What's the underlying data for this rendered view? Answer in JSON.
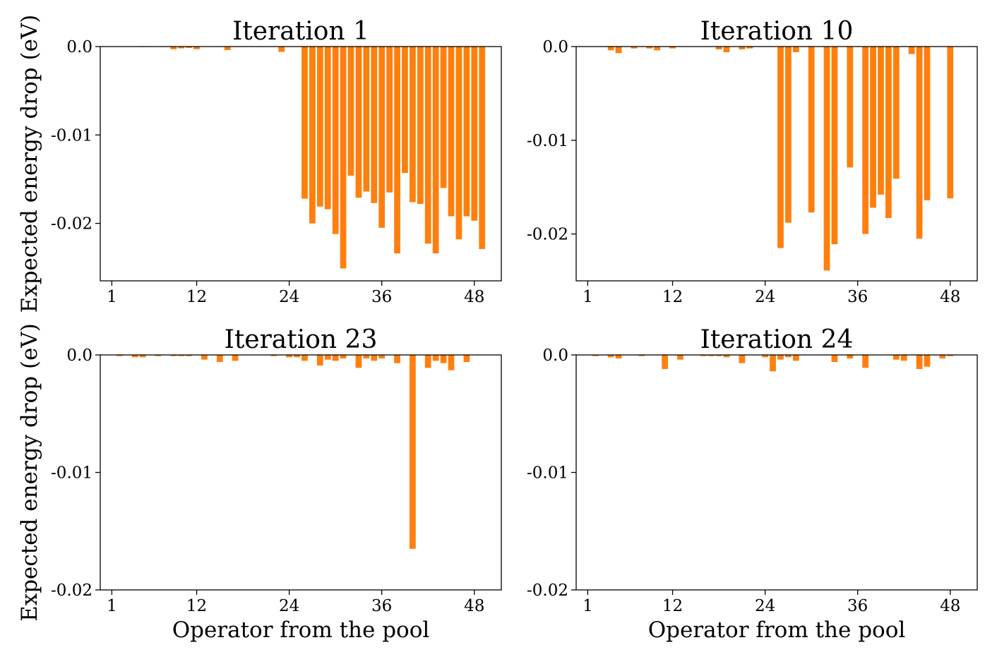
{
  "ylabel": "Expected energy drop (eV)",
  "xlabel": "Operator from the pool",
  "chart_data": [
    {
      "type": "bar",
      "title": "Iteration 1",
      "ylim": [
        -0.0265,
        0.0
      ],
      "xlim": [
        -1.5,
        50.5
      ],
      "yticks": [
        0.0,
        -0.01,
        -0.02
      ],
      "yticklabels": [
        "0.0",
        "-0.01",
        "-0.02"
      ],
      "xticks": [
        1,
        12,
        24,
        36,
        48
      ],
      "xticklabels": [
        "1",
        "12",
        "24",
        "36",
        "48"
      ],
      "ylabel_visible": true,
      "xlabel_visible": false,
      "values": [
        0,
        0,
        0,
        0,
        -5e-05,
        0,
        0,
        0,
        -0.0003,
        -0.0002,
        -0.00015,
        -0.0003,
        0,
        0,
        0,
        -0.0004,
        0,
        0,
        0,
        0,
        0,
        0,
        -0.0006,
        0,
        0,
        -0.0172,
        -0.02,
        -0.0181,
        -0.0184,
        -0.0212,
        -0.0251,
        -0.0146,
        -0.0171,
        -0.0164,
        -0.0177,
        -0.0205,
        -0.0165,
        -0.0234,
        -0.0143,
        -0.0176,
        -0.0178,
        -0.0223,
        -0.0234,
        -0.016,
        -0.0192,
        -0.0218,
        -0.0192,
        -0.0197,
        -0.0229
      ]
    },
    {
      "type": "bar",
      "title": "Iteration 10",
      "ylim": [
        -0.025,
        0.0
      ],
      "xlim": [
        -1.5,
        50.5
      ],
      "yticks": [
        0.0,
        -0.01,
        -0.02
      ],
      "yticklabels": [
        "0.0",
        "-0.01",
        "-0.02"
      ],
      "xticks": [
        1,
        12,
        24,
        36,
        48
      ],
      "xticklabels": [
        "1",
        "12",
        "24",
        "36",
        "48"
      ],
      "ylabel_visible": false,
      "xlabel_visible": false,
      "values": [
        0,
        0,
        0,
        -0.0004,
        -0.0007,
        0,
        -0.0002,
        0,
        -0.0002,
        -0.0004,
        0,
        -0.0002,
        0,
        0,
        0,
        0,
        0,
        -0.0003,
        -0.0006,
        0,
        -0.0003,
        -0.0002,
        0,
        0,
        0,
        -0.0215,
        -0.0188,
        -0.0006,
        0,
        -0.0177,
        0,
        -0.0239,
        -0.0211,
        0,
        -0.0129,
        0,
        -0.02,
        -0.0172,
        -0.0158,
        -0.0183,
        -0.0141,
        0,
        -0.0008,
        -0.0205,
        -0.0164,
        0,
        0,
        -0.0162,
        0
      ]
    },
    {
      "type": "bar",
      "title": "Iteration 23",
      "ylim": [
        -0.02,
        0.0
      ],
      "xlim": [
        -1.5,
        50.5
      ],
      "yticks": [
        0.0,
        -0.01,
        -0.02
      ],
      "yticklabels": [
        "0.0",
        "-0.01",
        "-0.02"
      ],
      "xticks": [
        1,
        12,
        24,
        36,
        48
      ],
      "xticklabels": [
        "1",
        "12",
        "24",
        "36",
        "48"
      ],
      "ylabel_visible": true,
      "xlabel_visible": true,
      "values": [
        0,
        -0.0001,
        0,
        -0.0002,
        -0.0002,
        0,
        -0.0001,
        0,
        -0.0001,
        -0.0001,
        -0.0001,
        0,
        -0.0004,
        0,
        -0.0006,
        0,
        -0.0005,
        0,
        0,
        0,
        0,
        -0.0001,
        0,
        -0.0002,
        -0.0002,
        -0.0005,
        0,
        -0.0009,
        -0.0004,
        -0.0005,
        -0.0003,
        0,
        -0.0011,
        -0.0003,
        -0.0005,
        -0.0003,
        0,
        -0.0007,
        0,
        -0.0165,
        0,
        -0.0011,
        -0.0005,
        -0.0007,
        -0.0013,
        0,
        -0.0006,
        0,
        0
      ]
    },
    {
      "type": "bar",
      "title": "Iteration 24",
      "ylim": [
        -0.02,
        0.0
      ],
      "xlim": [
        -1.5,
        50.5
      ],
      "yticks": [
        0.0,
        -0.01,
        -0.02
      ],
      "yticklabels": [
        "0.0",
        "-0.01",
        "-0.02"
      ],
      "xticks": [
        1,
        12,
        24,
        36,
        48
      ],
      "xticklabels": [
        "1",
        "12",
        "24",
        "36",
        "48"
      ],
      "ylabel_visible": false,
      "xlabel_visible": true,
      "values": [
        0,
        -0.0001,
        0,
        -0.0002,
        -0.0003,
        0,
        0,
        -0.0001,
        0,
        0,
        -0.0012,
        0,
        -0.0004,
        0,
        0,
        -0.0001,
        -0.0001,
        -0.0001,
        -0.0002,
        0,
        -0.0007,
        0,
        0,
        -0.0002,
        -0.0014,
        -0.0004,
        -0.0002,
        -0.0005,
        0,
        0,
        0,
        0,
        -0.0006,
        0,
        -0.0003,
        0,
        -0.0011,
        0,
        0,
        0,
        -0.0004,
        -0.0005,
        0,
        -0.0012,
        -0.001,
        0,
        -0.0003,
        -0.0001,
        0
      ]
    }
  ]
}
